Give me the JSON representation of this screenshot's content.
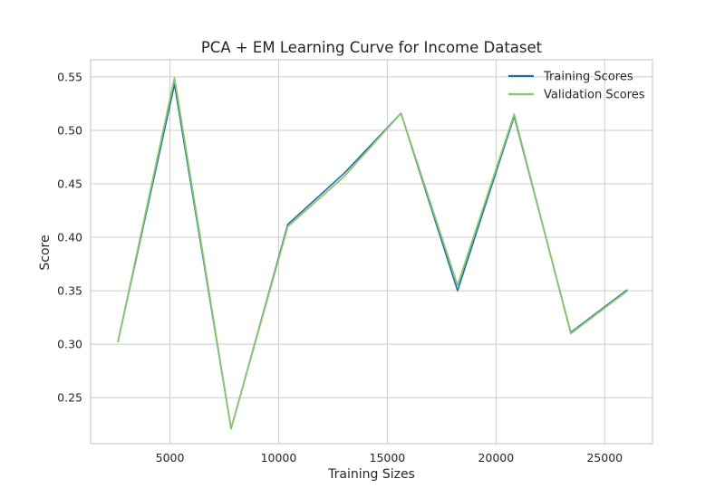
{
  "chart_data": {
    "type": "line",
    "title": "PCA + EM Learning Curve for Income Dataset",
    "xlabel": "Training Sizes",
    "ylabel": "Score",
    "xlim": [
      1350,
      27200
    ],
    "ylim": [
      0.207,
      0.566
    ],
    "xticks": [
      5000,
      10000,
      15000,
      20000,
      25000
    ],
    "yticks": [
      0.25,
      0.3,
      0.35,
      0.4,
      0.45,
      0.5,
      0.55
    ],
    "ytick_labels": [
      "0.25",
      "0.30",
      "0.35",
      "0.40",
      "0.45",
      "0.50",
      "0.55"
    ],
    "grid": true,
    "legend_position": "top-right",
    "x": [
      2604,
      5209,
      7813,
      10418,
      13022,
      15627,
      18231,
      20836,
      23440,
      26045
    ],
    "series": [
      {
        "name": "Training Scores",
        "color": "#1f6fa6",
        "values": [
          0.302,
          0.543,
          0.221,
          0.412,
          0.46,
          0.516,
          0.35,
          0.513,
          0.311,
          0.351
        ]
      },
      {
        "name": "Validation Scores",
        "color": "#8bc46a",
        "values": [
          0.302,
          0.549,
          0.221,
          0.41,
          0.457,
          0.516,
          0.355,
          0.515,
          0.31,
          0.35
        ]
      }
    ]
  }
}
